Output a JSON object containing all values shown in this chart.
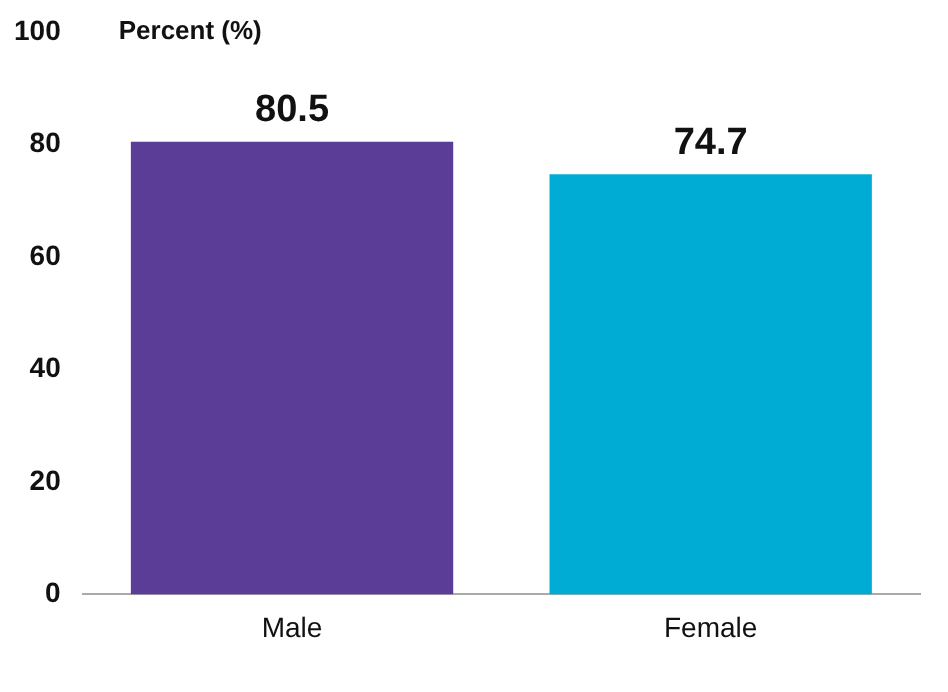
{
  "chart_data": {
    "type": "bar",
    "ylabel": "Percent (%)",
    "categories": [
      "Male",
      "Female"
    ],
    "values": [
      80.5,
      74.7
    ],
    "colors": [
      "#5b3c96",
      "#00acd4"
    ],
    "ylim": [
      0,
      100
    ],
    "yticks": [
      0,
      20,
      40,
      60,
      80,
      100
    ],
    "grid": false,
    "legend": false,
    "data_labels": true
  }
}
